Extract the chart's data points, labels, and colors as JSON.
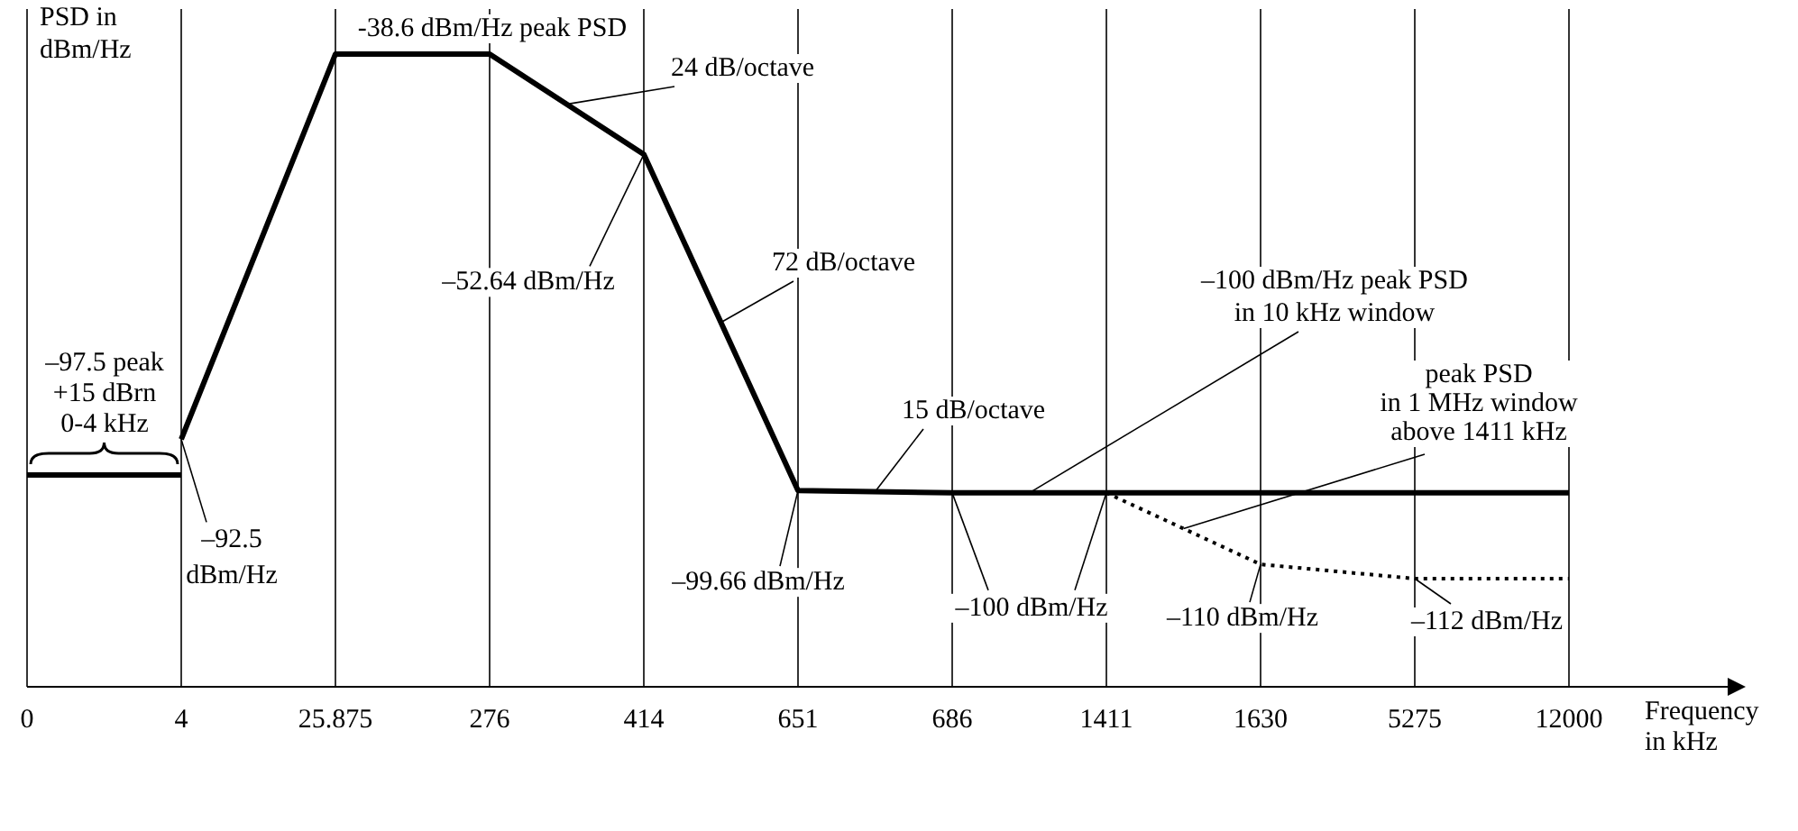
{
  "chart_data": {
    "type": "line",
    "xlabel": "Frequency\nin kHz",
    "ylabel": "PSD in\ndBm/Hz",
    "categories": [
      "0",
      "4",
      "25.875",
      "276",
      "414",
      "651",
      "686",
      "1411",
      "1630",
      "5275",
      "12000"
    ],
    "grid": "x",
    "tick_labels": "x",
    "series": [
      {
        "color": "#000000",
        "line_style": "solid",
        "values": [
          -97.5,
          -97.5,
          null,
          null,
          null,
          null,
          null,
          null,
          null,
          null,
          null
        ],
        "value_labels": [
          "–97.5 peak\n+15 dBrn\n0-4 kHz",
          null,
          null,
          null,
          null,
          null,
          null,
          null,
          null,
          null,
          null
        ]
      },
      {
        "color": "#000000",
        "line_style": "solid",
        "values": [
          null,
          -92.5,
          -38.6,
          -38.6,
          -52.64,
          -99.66,
          -100,
          -100,
          -100,
          -100,
          -100
        ],
        "value_labels": [
          null,
          "–92.5\ndBm/Hz",
          "-38.6 dBm/Hz peak PSD",
          null,
          "–52.64 dBm/Hz",
          "–99.66 dBm/Hz",
          "–100 dBm/Hz",
          null,
          null,
          null,
          null
        ]
      },
      {
        "name": "peak PSD\nin 1 MHz window\nabove 1411 kHz",
        "color": "#000000",
        "line_style": "dotted",
        "values": [
          null,
          null,
          null,
          null,
          null,
          null,
          null,
          -100,
          -110,
          -112,
          -112
        ],
        "value_labels": [
          null,
          null,
          null,
          null,
          null,
          null,
          null,
          null,
          "–110 dBm/Hz",
          "–112 dBm/Hz",
          null
        ]
      }
    ],
    "annotations": [
      "24 dB/octave",
      "72 dB/octave",
      "15 dB/octave",
      "–100 dBm/Hz peak PSD\nin 10 kHz window"
    ]
  }
}
